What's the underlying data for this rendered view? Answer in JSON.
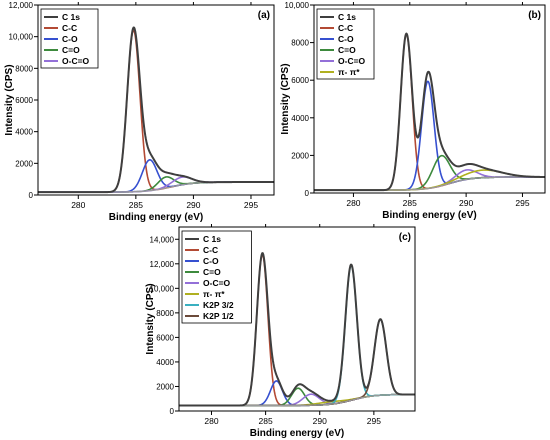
{
  "chart_data": [
    {
      "type": "line",
      "panel_label": "(a)",
      "xlabel": "Binding energy (eV)",
      "ylabel": "Intensity (CPS)",
      "xlim": [
        276.5,
        297.0
      ],
      "ylim": [
        0,
        12000
      ],
      "xticks": [
        280,
        285,
        290,
        295
      ],
      "yticks": [
        0,
        2000,
        4000,
        6000,
        8000,
        10000,
        12000
      ],
      "ytick_labels": [
        "0",
        "2000",
        "4000",
        "6000",
        "8000",
        "10,000",
        "12,000"
      ],
      "legend_position": "top-left",
      "background": {
        "start": [
          276.5,
          180
        ],
        "end": [
          297.0,
          820
        ],
        "step_center": 288.0,
        "step_width": 4.0
      },
      "series": [
        {
          "name": "C 1s",
          "color": "#3f3f3f",
          "kind": "envelope"
        },
        {
          "name": "C-C",
          "color": "#b34a34",
          "kind": "peak",
          "center": 284.8,
          "height": 10200,
          "fwhm": 1.3
        },
        {
          "name": "C-O",
          "color": "#3650d0",
          "kind": "peak",
          "center": 286.2,
          "height": 1950,
          "fwhm": 1.5
        },
        {
          "name": "C=O",
          "color": "#3d8a3d",
          "kind": "peak",
          "center": 287.6,
          "height": 700,
          "fwhm": 1.6
        },
        {
          "name": "O-C=O",
          "color": "#9370d8",
          "kind": "peak",
          "center": 289.0,
          "height": 480,
          "fwhm": 2.0
        }
      ]
    },
    {
      "type": "line",
      "panel_label": "(b)",
      "xlabel": "Binding energy (eV)",
      "ylabel": "Intensity (CPS)",
      "xlim": [
        276.5,
        297.0
      ],
      "ylim": [
        0,
        10000
      ],
      "xticks": [
        280,
        285,
        290,
        295
      ],
      "yticks": [
        0,
        2000,
        4000,
        6000,
        8000,
        10000
      ],
      "ytick_labels": [
        "0",
        "2000",
        "4000",
        "6000",
        "8000",
        "10,000"
      ],
      "legend_position": "top-left",
      "background": {
        "start": [
          276.5,
          150
        ],
        "end": [
          297.0,
          850
        ],
        "step_center": 288.5,
        "step_width": 4.0
      },
      "series": [
        {
          "name": "C 1s",
          "color": "#3f3f3f",
          "kind": "envelope"
        },
        {
          "name": "C-C",
          "color": "#b34a34",
          "kind": "peak",
          "center": 284.7,
          "height": 8300,
          "fwhm": 1.2
        },
        {
          "name": "C-O",
          "color": "#3650d0",
          "kind": "peak",
          "center": 286.6,
          "height": 5700,
          "fwhm": 1.3
        },
        {
          "name": "C=O",
          "color": "#3d8a3d",
          "kind": "peak",
          "center": 287.8,
          "height": 1600,
          "fwhm": 1.8
        },
        {
          "name": "O-C=O",
          "color": "#9370d8",
          "kind": "peak",
          "center": 290.0,
          "height": 500,
          "fwhm": 2.2
        },
        {
          "name": "π- π*",
          "color": "#b0b020",
          "kind": "peak",
          "center": 291.5,
          "height": 400,
          "fwhm": 4.0
        }
      ]
    },
    {
      "type": "line",
      "panel_label": "(c)",
      "xlabel": "Binding energy (eV)",
      "ylabel": "Intensity (CPS)",
      "xlim": [
        277.0,
        298.8
      ],
      "ylim": [
        0,
        15000
      ],
      "xticks": [
        280,
        285,
        290,
        295
      ],
      "yticks": [
        0,
        2000,
        4000,
        6000,
        8000,
        10000,
        12000,
        14000
      ],
      "ytick_labels": [
        "0",
        "2000",
        "4000",
        "6000",
        "8000",
        "10,000",
        "12,000",
        "14,000"
      ],
      "legend_position": "top-left",
      "background": {
        "start": [
          277.0,
          450
        ],
        "end": [
          298.8,
          1350
        ],
        "step_center": 293.0,
        "step_width": 4.0
      },
      "series": [
        {
          "name": "C 1s",
          "color": "#3f3f3f",
          "kind": "envelope"
        },
        {
          "name": "C-C",
          "color": "#b34a34",
          "kind": "peak",
          "center": 284.7,
          "height": 12300,
          "fwhm": 1.2
        },
        {
          "name": "C-O",
          "color": "#3650d0",
          "kind": "peak",
          "center": 286.0,
          "height": 2000,
          "fwhm": 1.3
        },
        {
          "name": "C=O",
          "color": "#3d8a3d",
          "kind": "peak",
          "center": 288.0,
          "height": 1400,
          "fwhm": 1.4
        },
        {
          "name": "O-C=O",
          "color": "#9370d8",
          "kind": "peak",
          "center": 289.2,
          "height": 900,
          "fwhm": 1.8
        },
        {
          "name": "π- π*",
          "color": "#b0b020",
          "kind": "peak",
          "center": 291.0,
          "height": 200,
          "fwhm": 3.0
        },
        {
          "name": "K2P 3/2",
          "color": "#3ab0c0",
          "kind": "peak",
          "center": 292.9,
          "height": 11000,
          "fwhm": 1.25
        },
        {
          "name": "K2P 1/2",
          "color": "#6b4a3a",
          "kind": "peak",
          "center": 295.6,
          "height": 6200,
          "fwhm": 1.3
        }
      ]
    }
  ]
}
